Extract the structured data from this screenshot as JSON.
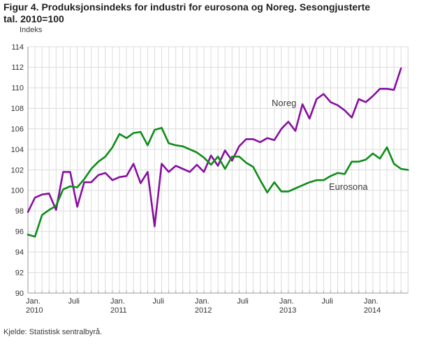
{
  "figure": {
    "title_line1": "Figur 4. Produksjonsindeks for industri for eurosona og Noreg. Sesongjusterte",
    "title_line2": "tal. 2010=100",
    "unit_label": "Indeks",
    "source": "Kjelde: Statistisk sentralbyrå."
  },
  "chart_data": {
    "type": "line",
    "title": "Figur 4. Produksjonsindeks for industri for eurosona og Noreg. Sesongjusterte tal. 2010=100",
    "ylabel": "Indeks",
    "xlabel": "",
    "ylim": [
      90,
      114
    ],
    "ytick_step": 2,
    "grid": true,
    "legend_position": "inline-labels",
    "x_start": "2010-01",
    "x_months_total": 55,
    "x_ticks": [
      {
        "month": 0,
        "label": "Jan.",
        "year": "2010"
      },
      {
        "month": 6,
        "label": "Juli",
        "year": ""
      },
      {
        "month": 12,
        "label": "Jan.",
        "year": "2011"
      },
      {
        "month": 18,
        "label": "Juli",
        "year": ""
      },
      {
        "month": 24,
        "label": "Jan.",
        "year": "2012"
      },
      {
        "month": 30,
        "label": "Juli",
        "year": ""
      },
      {
        "month": 36,
        "label": "Jan.",
        "year": "2013"
      },
      {
        "month": 42,
        "label": "Juli",
        "year": ""
      },
      {
        "month": 48,
        "label": "Jan.",
        "year": "2014"
      }
    ],
    "series": [
      {
        "name": "Noreg",
        "color": "#870fa0",
        "label": {
          "text": "Noreg",
          "x": 389,
          "y": 152
        },
        "values": [
          97.9,
          99.3,
          99.6,
          99.7,
          98.1,
          101.8,
          101.8,
          98.4,
          100.8,
          100.8,
          101.5,
          101.7,
          101.0,
          101.3,
          101.4,
          102.6,
          100.7,
          101.8,
          96.5,
          102.6,
          101.8,
          102.4,
          102.1,
          101.8,
          102.5,
          101.8,
          103.4,
          102.4,
          103.9,
          102.9,
          104.3,
          105.0,
          105.0,
          104.7,
          105.1,
          104.9,
          106.0,
          106.7,
          105.8,
          108.4,
          107.0,
          108.9,
          109.4,
          108.6,
          108.3,
          107.8,
          107.1,
          108.9,
          108.6,
          109.2,
          109.9,
          109.9,
          109.8,
          111.9
        ]
      },
      {
        "name": "Eurosona",
        "color": "#0e8c19",
        "label": {
          "text": "Eurosona",
          "x": 471,
          "y": 272
        },
        "values": [
          95.7,
          95.5,
          97.6,
          98.1,
          98.5,
          100.1,
          100.4,
          100.3,
          101.1,
          102.1,
          102.8,
          103.3,
          104.2,
          105.5,
          105.1,
          105.6,
          105.7,
          104.4,
          105.9,
          106.1,
          104.6,
          104.4,
          104.3,
          104.0,
          103.7,
          103.2,
          102.5,
          103.3,
          102.1,
          103.3,
          103.3,
          102.7,
          102.3,
          101.0,
          99.8,
          100.8,
          99.9,
          99.9,
          100.2,
          100.5,
          100.8,
          101.0,
          101.0,
          101.4,
          101.7,
          101.6,
          102.8,
          102.8,
          103.0,
          103.6,
          103.1,
          104.2,
          102.6,
          102.1,
          102.0
        ]
      }
    ],
    "style": {
      "grid_color": "#dcdcdc",
      "axis_color": "#999999",
      "tick_color": "#b3b3b3",
      "tick_text_color": "#333333",
      "series_label_color": "#3c3c3c",
      "line_width": 2.6
    }
  }
}
